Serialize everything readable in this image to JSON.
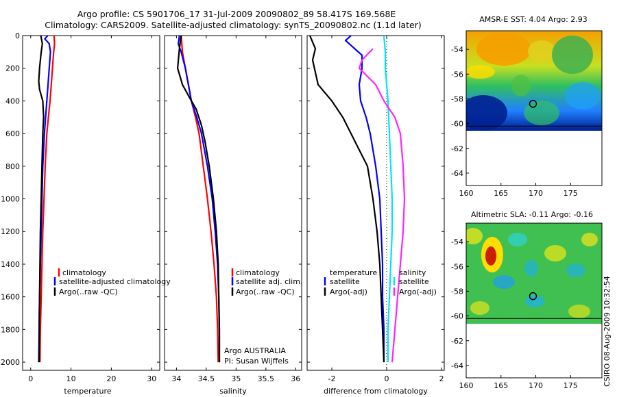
{
  "header": {
    "line1": "Argo profile: CS 5901706_17 31-Jul-2009 20090802_89 58.417S 169.568E",
    "line2": "Climatology: CARS2009. Satellite-adjusted climatology: synTS_20090802.nc (1.1d later)"
  },
  "colors": {
    "clim": "#ff0000",
    "sat": "#0000ff",
    "argo": "#000000",
    "sat_salt": "#00e5ee",
    "argo_salt": "#ff22ff",
    "marker": "#000000"
  },
  "chart_data": [
    {
      "type": "line",
      "name": "temperature-profile",
      "xlabel": "temperature",
      "xlim": [
        -2,
        32
      ],
      "ylim": [
        2050,
        0
      ],
      "xticks": [
        "0",
        "10",
        "20",
        "30"
      ],
      "yticks": [
        "0",
        "200",
        "400",
        "600",
        "800",
        "1000",
        "1200",
        "1400",
        "1600",
        "1800",
        "2000"
      ],
      "series": [
        {
          "name": "climatology",
          "color": "clim",
          "points": [
            [
              5.8,
              0
            ],
            [
              5.9,
              50
            ],
            [
              5.7,
              100
            ],
            [
              5.4,
              200
            ],
            [
              5.1,
              300
            ],
            [
              4.8,
              400
            ],
            [
              4.4,
              500
            ],
            [
              4.0,
              600
            ],
            [
              3.6,
              800
            ],
            [
              3.3,
              1000
            ],
            [
              3.0,
              1200
            ],
            [
              2.8,
              1400
            ],
            [
              2.6,
              1600
            ],
            [
              2.4,
              1800
            ],
            [
              2.3,
              2000
            ]
          ]
        },
        {
          "name": "satellite-adjusted climatology",
          "color": "sat",
          "points": [
            [
              4.2,
              0
            ],
            [
              3.5,
              20
            ],
            [
              4.6,
              50
            ],
            [
              4.9,
              100
            ],
            [
              4.6,
              200
            ],
            [
              4.3,
              300
            ],
            [
              4.0,
              400
            ],
            [
              3.7,
              500
            ],
            [
              3.4,
              600
            ],
            [
              3.0,
              800
            ],
            [
              2.8,
              1000
            ],
            [
              2.6,
              1200
            ],
            [
              2.4,
              1400
            ],
            [
              2.2,
              1600
            ],
            [
              2.1,
              1800
            ],
            [
              2.0,
              2000
            ]
          ]
        },
        {
          "name": "Argo(..raw -QC)",
          "color": "argo",
          "points": [
            [
              2.5,
              0
            ],
            [
              2.9,
              50
            ],
            [
              2.6,
              100
            ],
            [
              2.2,
              200
            ],
            [
              2.0,
              280
            ],
            [
              2.2,
              330
            ],
            [
              3.0,
              400
            ],
            [
              3.2,
              500
            ],
            [
              3.0,
              600
            ],
            [
              2.8,
              800
            ],
            [
              2.6,
              1000
            ],
            [
              2.4,
              1200
            ],
            [
              2.3,
              1400
            ],
            [
              2.2,
              1600
            ],
            [
              2.1,
              1800
            ],
            [
              2.1,
              2000
            ]
          ]
        }
      ],
      "legend": [
        "climatology",
        "satellite-adjusted climatology",
        "Argo(..raw -QC)"
      ]
    },
    {
      "type": "line",
      "name": "salinity-profile",
      "xlabel": "salinity",
      "xlim": [
        33.8,
        36.1
      ],
      "ylim": [
        2050,
        0
      ],
      "xticks": [
        "34",
        "34.5",
        "35",
        "35.5",
        "36"
      ],
      "series": [
        {
          "name": "climatology",
          "color": "clim",
          "points": [
            [
              34.08,
              0
            ],
            [
              34.1,
              100
            ],
            [
              34.15,
              200
            ],
            [
              34.2,
              300
            ],
            [
              34.25,
              400
            ],
            [
              34.32,
              500
            ],
            [
              34.38,
              600
            ],
            [
              34.45,
              800
            ],
            [
              34.52,
              1000
            ],
            [
              34.58,
              1200
            ],
            [
              34.63,
              1400
            ],
            [
              34.67,
              1600
            ],
            [
              34.69,
              1800
            ],
            [
              34.7,
              2000
            ]
          ]
        },
        {
          "name": "satellite adj. clim.",
          "color": "sat",
          "points": [
            [
              34.05,
              0
            ],
            [
              34.03,
              50
            ],
            [
              34.08,
              100
            ],
            [
              34.15,
              200
            ],
            [
              34.2,
              300
            ],
            [
              34.25,
              400
            ],
            [
              34.34,
              500
            ],
            [
              34.42,
              600
            ],
            [
              34.52,
              800
            ],
            [
              34.6,
              1000
            ],
            [
              34.65,
              1200
            ],
            [
              34.69,
              1400
            ],
            [
              34.71,
              1600
            ],
            [
              34.72,
              1800
            ],
            [
              34.72,
              2000
            ]
          ]
        },
        {
          "name": "Argo(..raw -QC)",
          "color": "argo",
          "points": [
            [
              34.08,
              0
            ],
            [
              34.05,
              80
            ],
            [
              34.02,
              200
            ],
            [
              34.1,
              300
            ],
            [
              34.22,
              380
            ],
            [
              34.33,
              450
            ],
            [
              34.42,
              550
            ],
            [
              34.48,
              650
            ],
            [
              34.55,
              800
            ],
            [
              34.62,
              1000
            ],
            [
              34.67,
              1200
            ],
            [
              34.7,
              1400
            ],
            [
              34.71,
              1600
            ],
            [
              34.72,
              1800
            ],
            [
              34.72,
              2000
            ]
          ]
        }
      ],
      "legend": [
        "climatology",
        "satellite adj. clim.",
        "Argo(..raw -QC)"
      ],
      "annotations": [
        "Argo AUSTRALIA",
        "PI: Susan Wijffels"
      ]
    },
    {
      "type": "line",
      "name": "difference-profile",
      "xlabel": "difference from climatology",
      "xlim": [
        -2.9,
        2.1
      ],
      "ylim": [
        2050,
        0
      ],
      "xticks": [
        "-2",
        "0",
        "2"
      ],
      "series": [
        {
          "name": "temperature satellite",
          "color": "sat",
          "points": [
            [
              -1.3,
              0
            ],
            [
              -1.5,
              30
            ],
            [
              -1.3,
              60
            ],
            [
              -1.1,
              90
            ],
            [
              -0.9,
              120
            ],
            [
              -0.9,
              200
            ],
            [
              -1.0,
              300
            ],
            [
              -0.95,
              400
            ],
            [
              -0.75,
              500
            ],
            [
              -0.6,
              600
            ],
            [
              -0.4,
              800
            ],
            [
              -0.25,
              1000
            ],
            [
              -0.2,
              1200
            ],
            [
              -0.15,
              1400
            ],
            [
              -0.15,
              1600
            ],
            [
              -0.1,
              1800
            ],
            [
              -0.1,
              2000
            ]
          ]
        },
        {
          "name": "temperature Argo(-adj)",
          "color": "argo",
          "points": [
            [
              -2.8,
              0
            ],
            [
              -2.6,
              80
            ],
            [
              -2.7,
              150
            ],
            [
              -2.5,
              300
            ],
            [
              -2.0,
              400
            ],
            [
              -1.6,
              500
            ],
            [
              -1.3,
              600
            ],
            [
              -1.0,
              700
            ],
            [
              -0.7,
              800
            ],
            [
              -0.5,
              1000
            ],
            [
              -0.35,
              1200
            ],
            [
              -0.25,
              1400
            ],
            [
              -0.2,
              1600
            ],
            [
              -0.15,
              1800
            ],
            [
              -0.1,
              2000
            ]
          ]
        },
        {
          "name": "salinity satellite",
          "color": "sat_salt",
          "points": [
            [
              -0.1,
              0
            ],
            [
              -0.05,
              100
            ],
            [
              -0.05,
              200
            ],
            [
              0.0,
              300
            ],
            [
              0.05,
              400
            ],
            [
              0.1,
              600
            ],
            [
              0.15,
              800
            ],
            [
              0.2,
              1000
            ],
            [
              0.2,
              1200
            ],
            [
              0.15,
              1400
            ],
            [
              0.1,
              1600
            ],
            [
              0.05,
              1800
            ],
            [
              0.05,
              2000
            ]
          ]
        },
        {
          "name": "salinity Argo(-adj)",
          "color": "argo_salt",
          "points": [
            [
              -0.5,
              80
            ],
            [
              -0.9,
              150
            ],
            [
              -1.0,
              200
            ],
            [
              -0.4,
              300
            ],
            [
              -0.1,
              400
            ],
            [
              0.3,
              500
            ],
            [
              0.5,
              600
            ],
            [
              0.6,
              800
            ],
            [
              0.65,
              1000
            ],
            [
              0.6,
              1200
            ],
            [
              0.5,
              1400
            ],
            [
              0.4,
              1600
            ],
            [
              0.3,
              1800
            ],
            [
              0.2,
              2000
            ]
          ]
        }
      ],
      "legend_left": {
        "title": "temperature",
        "items": [
          "satellite",
          "Argo(-adj)"
        ]
      },
      "legend_right": {
        "title": "salinity",
        "items": [
          "satellite",
          "Argo(-adj)"
        ]
      }
    },
    {
      "type": "heatmap",
      "name": "sst-map",
      "title": "AMSR-E SST: 4.04 Argo: 2.93",
      "xlim": [
        160,
        179.5
      ],
      "ylim": [
        -65,
        -52.5
      ],
      "xticks": [
        "160",
        "165",
        "170",
        "175"
      ],
      "yticks": [
        "-54",
        "-56",
        "-58",
        "-60",
        "-62",
        "-64"
      ],
      "data_extent_lat": [
        -60.2,
        -52.5
      ],
      "marker": {
        "lon": 169.6,
        "lat": -58.4
      }
    },
    {
      "type": "heatmap",
      "name": "sla-map",
      "title": "Altimetric SLA: -0.11 Argo: -0.16",
      "xlim": [
        160,
        179.5
      ],
      "ylim": [
        -65,
        -52.5
      ],
      "xticks": [
        "160",
        "165",
        "170",
        "175"
      ],
      "yticks": [
        "-54",
        "-56",
        "-58",
        "-60",
        "-62",
        "-64"
      ],
      "data_extent_lat": [
        -60.2,
        -52.5
      ],
      "marker": {
        "lon": 169.6,
        "lat": -58.4
      }
    }
  ],
  "footer": {
    "credit": "CSIRO 08-Aug-2009 10:32:54"
  }
}
